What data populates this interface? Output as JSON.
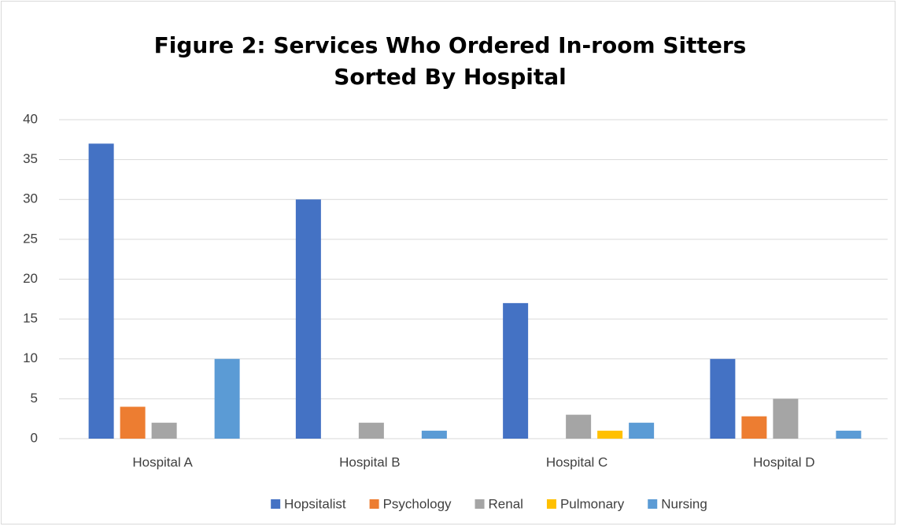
{
  "chart_data": {
    "type": "bar",
    "title": "Figure 2: Services Who Ordered In-room Sitters Sorted By Hospital",
    "categories": [
      "Hospital A",
      "Hospital B",
      "Hospital C",
      "Hospital D"
    ],
    "series": [
      {
        "name": "Hopsitalist",
        "color": "#4472c4",
        "values": [
          37,
          30,
          17,
          10
        ]
      },
      {
        "name": "Psychology",
        "color": "#ed7d31",
        "values": [
          4,
          0,
          0,
          2.8
        ]
      },
      {
        "name": "Renal",
        "color": "#a5a5a5",
        "values": [
          2,
          2,
          3,
          5
        ]
      },
      {
        "name": "Pulmonary",
        "color": "#ffc000",
        "values": [
          0,
          0,
          1,
          0
        ]
      },
      {
        "name": "Nursing",
        "color": "#5b9bd5",
        "values": [
          10,
          1,
          2,
          1
        ]
      }
    ],
    "ylim": [
      0,
      40
    ],
    "yticks": [
      0,
      5,
      10,
      15,
      20,
      25,
      30,
      35,
      40
    ],
    "grid": true,
    "legend": "bottom"
  }
}
